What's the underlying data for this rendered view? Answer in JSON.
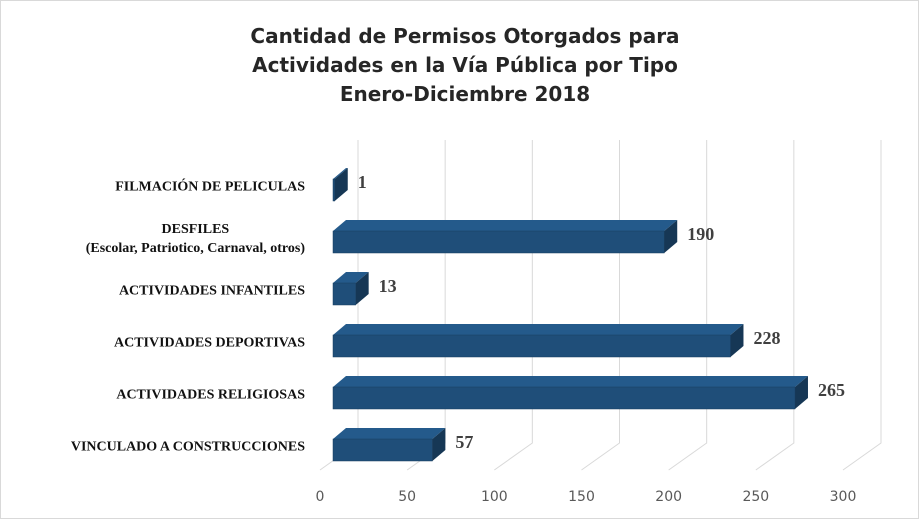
{
  "chart_data": {
    "type": "bar",
    "orientation": "horizontal",
    "title": "Cantidad de Permisos Otorgados para\nActividades en la Vía Pública por Tipo\nEnero-Diciembre 2018",
    "categories": [
      "FILMACIÓN DE PELICULAS",
      "DESFILES\n(Escolar, Patriotico, Carnaval, otros)",
      "ACTIVIDADES INFANTILES",
      "ACTIVIDADES DEPORTIVAS",
      "ACTIVIDADES RELIGIOSAS",
      "VINCULADO A CONSTRUCCIONES"
    ],
    "values": [
      1,
      190,
      13,
      228,
      265,
      57
    ],
    "color": "#1f4e79",
    "xlim": [
      0,
      300
    ],
    "xticks": [
      0,
      50,
      100,
      150,
      200,
      250,
      300
    ],
    "grid": true
  }
}
